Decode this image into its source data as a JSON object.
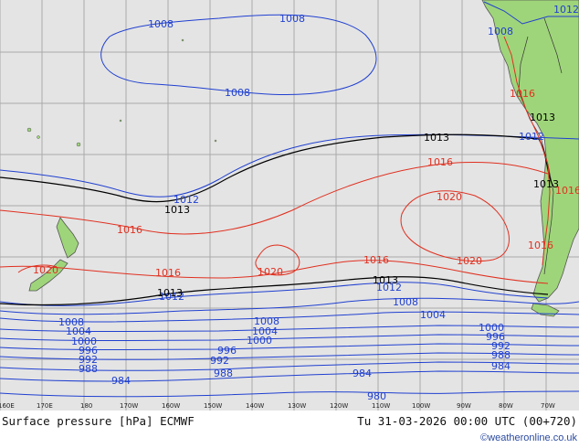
{
  "footer": {
    "title": "Surface pressure [hPa] ECMWF",
    "valid_time": "Tu 31-03-2026 00:00 UTC (00+720)",
    "credit": "©weatheronline.co.uk"
  },
  "colors": {
    "ocean": "#e4e4e4",
    "land": "#9fd57a",
    "grid": "#aaaaaa",
    "low_isobar": "#2040d0",
    "mean_isobar": "#000000",
    "high_isobar": "#e03020"
  },
  "longitude_labels": [
    "160E",
    "170E",
    "180",
    "170W",
    "160W",
    "150W",
    "140W",
    "130W",
    "120W",
    "110W",
    "100W",
    "90W",
    "80W",
    "70W"
  ],
  "isobar_labels": {
    "l1008a": "1008",
    "l1008b": "1008",
    "l1008c": "1008",
    "l1008d": "1008",
    "l1012a": "1012",
    "l1012b": "1012",
    "l1012c": "1012",
    "l1012d": "1012",
    "l1013a": "1013",
    "l1013b": "1013",
    "l1013c": "1013",
    "l1013d": "1013",
    "l1013e": "1013",
    "l1013f": "1013",
    "l1016a": "1016",
    "l1016b": "1016",
    "l1016c": "1016",
    "l1016d": "1016",
    "l1016e": "1016",
    "l1016f": "1016",
    "l1016g": "1016",
    "l1020a": "1020",
    "l1020b": "1020",
    "l1020c": "1020",
    "l1020d": "1020",
    "l1008e": "1008",
    "l1008f": "1008",
    "l1008g": "1008",
    "l1004a": "1004",
    "l1004b": "1004",
    "l1004c": "1004",
    "l1000a": "1000",
    "l1000b": "1000",
    "l1000c": "1000",
    "l996a": "996",
    "l996b": "996",
    "l996c": "996",
    "l992a": "992",
    "l992b": "992",
    "l992c": "992",
    "l988a": "988",
    "l988b": "988",
    "l988c": "988",
    "l984a": "984",
    "l984b": "984",
    "l984c": "984",
    "l980a": "980"
  }
}
